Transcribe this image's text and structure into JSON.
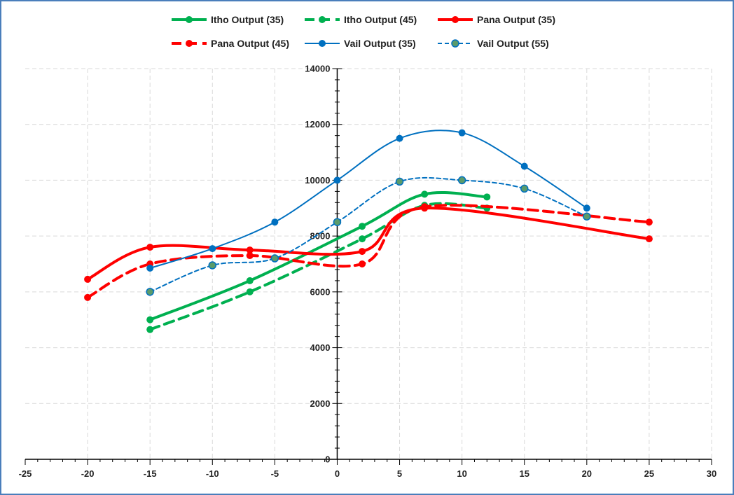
{
  "chart_data": {
    "type": "line",
    "title": "",
    "xlabel": "",
    "ylabel": "",
    "xlim": [
      -25,
      30
    ],
    "ylim": [
      0,
      14000
    ],
    "x_ticks": [
      -25,
      -20,
      -15,
      -10,
      -5,
      0,
      5,
      10,
      15,
      20,
      25,
      30
    ],
    "y_ticks": [
      0,
      2000,
      4000,
      6000,
      8000,
      10000,
      12000,
      14000
    ],
    "x_tick_labels": [
      "-25",
      "-20",
      "-15",
      "-10",
      "-5",
      "0",
      "5",
      "10",
      "15",
      "20",
      "25",
      "30"
    ],
    "y_tick_labels": [
      "0",
      "2000",
      "4000",
      "6000",
      "8000",
      "10000",
      "12000",
      "14000"
    ],
    "grid": true,
    "smooth": true,
    "legend_position": "top",
    "series": [
      {
        "name": "Itho Output (35)",
        "color": "#00b050",
        "dash": "solid",
        "width": "thick",
        "points": [
          [
            -15,
            5000
          ],
          [
            -7,
            6400
          ],
          [
            2,
            8350
          ],
          [
            7,
            9500
          ],
          [
            12,
            9400
          ]
        ]
      },
      {
        "name": "Itho Output (45)",
        "color": "#00b050",
        "dash": "dashed",
        "width": "thick",
        "points": [
          [
            -15,
            4650
          ],
          [
            -7,
            6000
          ],
          [
            2,
            7900
          ],
          [
            7,
            9100
          ],
          [
            12,
            9000
          ]
        ]
      },
      {
        "name": "Pana Output (35)",
        "color": "#ff0000",
        "dash": "solid",
        "width": "thick",
        "points": [
          [
            -20,
            6450
          ],
          [
            -15,
            7600
          ],
          [
            -7,
            7500
          ],
          [
            2,
            7450
          ],
          [
            7,
            9000
          ],
          [
            25,
            7900
          ]
        ]
      },
      {
        "name": "Pana Output (45)",
        "color": "#ff0000",
        "dash": "dashed",
        "width": "thick",
        "points": [
          [
            -20,
            5800
          ],
          [
            -15,
            7000
          ],
          [
            -7,
            7300
          ],
          [
            2,
            7000
          ],
          [
            7,
            9050
          ],
          [
            25,
            8500
          ]
        ]
      },
      {
        "name": "Vail Output (35)",
        "color": "#0070c0",
        "dash": "solid",
        "width": "thin",
        "points": [
          [
            -15,
            6850
          ],
          [
            -10,
            7550
          ],
          [
            -5,
            8500
          ],
          [
            0,
            10000
          ],
          [
            5,
            11500
          ],
          [
            10,
            11700
          ],
          [
            15,
            10500
          ],
          [
            20,
            9000
          ]
        ]
      },
      {
        "name": "Vail Output (55)",
        "color": "#0070c0",
        "dash": "dotted",
        "width": "thin",
        "marker_fill": "#5b9b6b",
        "points": [
          [
            -15,
            6000
          ],
          [
            -10,
            6950
          ],
          [
            -5,
            7200
          ],
          [
            0,
            8500
          ],
          [
            5,
            9950
          ],
          [
            10,
            10000
          ],
          [
            15,
            9700
          ],
          [
            20,
            8700
          ]
        ]
      }
    ]
  }
}
